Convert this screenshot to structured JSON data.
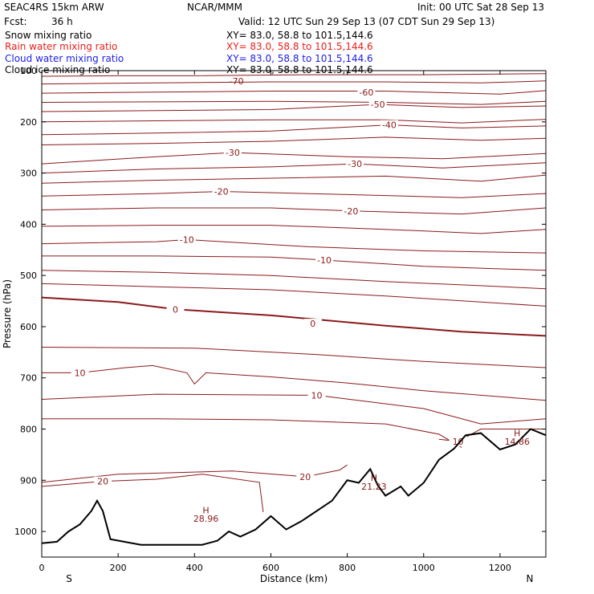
{
  "header": {
    "model": "SEAC4RS 15km ARW",
    "fcst_label": "Fcst:",
    "fcst_value": "36 h",
    "org": "NCAR/MMM",
    "init": "Init: 00 UTC Sat 28 Sep 13",
    "valid": "Valid: 12 UTC Sun 29 Sep 13 (07 CDT Sun 29 Sep 13)"
  },
  "fields": [
    {
      "name": "Snow mixing ratio",
      "xy": "XY=  83.0, 58.8 to 101.5,144.6",
      "color": "#000000"
    },
    {
      "name": "Rain water mixing ratio",
      "xy": "XY=  83.0, 58.8 to 101.5,144.6",
      "color": "#e8201c"
    },
    {
      "name": "Cloud water mixing ratio",
      "xy": "XY=  83.0, 58.8 to 101.5,144.6",
      "color": "#1c1ce8"
    },
    {
      "name": "Cloud ice mixing ratio",
      "xy": "XY=  83.0, 58.8 to 101.5,144.6",
      "color": "#000000"
    }
  ],
  "chart_data": {
    "type": "line",
    "xlabel": "Distance (km)",
    "ylabel": "Pressure (hPa)",
    "xlim": [
      0,
      1320
    ],
    "ylim_pressure": [
      1050,
      100
    ],
    "x_ticks": [
      0,
      200,
      400,
      600,
      800,
      1000,
      1200
    ],
    "y_ticks": [
      100,
      200,
      300,
      400,
      500,
      600,
      700,
      800,
      900,
      1000
    ],
    "left_end_label": "S",
    "right_end_label": "N",
    "contour_color": "#8b1a1a",
    "terrain_color": "#000000",
    "isotherms": [
      {
        "value": -70,
        "label": "-70",
        "label_at": [
          510,
          120
        ],
        "points": [
          [
            0,
            111
          ],
          [
            200,
            110
          ],
          [
            400,
            110
          ],
          [
            700,
            108
          ],
          [
            1000,
            108
          ],
          [
            1320,
            106
          ]
        ]
      },
      {
        "value": -65,
        "label": "",
        "points": [
          [
            0,
            126
          ],
          [
            300,
            124
          ],
          [
            600,
            122
          ],
          [
            900,
            122
          ],
          [
            1150,
            124
          ],
          [
            1320,
            120
          ]
        ]
      },
      {
        "value": -60,
        "label": "-60",
        "label_at": [
          850,
          142
        ],
        "points": [
          [
            0,
            144
          ],
          [
            300,
            142
          ],
          [
            600,
            140
          ],
          [
            900,
            140
          ],
          [
            1200,
            146
          ],
          [
            1320,
            139
          ]
        ]
      },
      {
        "value": -55,
        "label": "",
        "points": [
          [
            0,
            162
          ],
          [
            300,
            161
          ],
          [
            600,
            160
          ],
          [
            900,
            162
          ],
          [
            1150,
            166
          ],
          [
            1320,
            160
          ]
        ]
      },
      {
        "value": -50,
        "label": "-50",
        "label_at": [
          880,
          166
        ],
        "points": [
          [
            0,
            180
          ],
          [
            300,
            178
          ],
          [
            600,
            176
          ],
          [
            880,
            166
          ],
          [
            1100,
            172
          ],
          [
            1320,
            169
          ]
        ]
      },
      {
        "value": -45,
        "label": "",
        "points": [
          [
            0,
            200
          ],
          [
            300,
            198
          ],
          [
            600,
            196
          ],
          [
            900,
            196
          ],
          [
            1100,
            202
          ],
          [
            1320,
            195
          ]
        ]
      },
      {
        "value": -40,
        "label": "-40",
        "label_at": [
          910,
          206
        ],
        "points": [
          [
            0,
            225
          ],
          [
            300,
            222
          ],
          [
            600,
            218
          ],
          [
            910,
            206
          ],
          [
            1100,
            212
          ],
          [
            1320,
            208
          ]
        ]
      },
      {
        "value": -35,
        "label": "",
        "points": [
          [
            0,
            245
          ],
          [
            300,
            242
          ],
          [
            600,
            238
          ],
          [
            900,
            230
          ],
          [
            1150,
            236
          ],
          [
            1320,
            232
          ]
        ]
      },
      {
        "value": -30,
        "label": "-30",
        "label_at": [
          500,
          260
        ],
        "points": [
          [
            0,
            282
          ],
          [
            300,
            268
          ],
          [
            500,
            260
          ],
          [
            800,
            268
          ],
          [
            1050,
            272
          ],
          [
            1320,
            262
          ]
        ]
      },
      {
        "value": -30,
        "label": "-30",
        "label_at": [
          820,
          282
        ],
        "points": [
          [
            0,
            300
          ],
          [
            300,
            292
          ],
          [
            600,
            288
          ],
          [
            820,
            282
          ],
          [
            1050,
            290
          ],
          [
            1320,
            280
          ]
        ]
      },
      {
        "value": -25,
        "label": "",
        "points": [
          [
            0,
            320
          ],
          [
            300,
            314
          ],
          [
            600,
            310
          ],
          [
            900,
            306
          ],
          [
            1150,
            316
          ],
          [
            1320,
            304
          ]
        ]
      },
      {
        "value": -20,
        "label": "-20",
        "label_at": [
          470,
          336
        ],
        "points": [
          [
            0,
            345
          ],
          [
            300,
            340
          ],
          [
            470,
            336
          ],
          [
            800,
            342
          ],
          [
            1100,
            348
          ],
          [
            1320,
            340
          ]
        ]
      },
      {
        "value": -20,
        "label": "-20",
        "label_at": [
          810,
          374
        ],
        "points": [
          [
            0,
            372
          ],
          [
            300,
            368
          ],
          [
            600,
            368
          ],
          [
            810,
            374
          ],
          [
            1100,
            380
          ],
          [
            1320,
            368
          ]
        ]
      },
      {
        "value": -15,
        "label": "",
        "points": [
          [
            0,
            404
          ],
          [
            300,
            402
          ],
          [
            600,
            402
          ],
          [
            900,
            410
          ],
          [
            1150,
            418
          ],
          [
            1320,
            410
          ]
        ]
      },
      {
        "value": -10,
        "label": "-10",
        "label_at": [
          380,
          430
        ],
        "points": [
          [
            0,
            438
          ],
          [
            300,
            434
          ],
          [
            380,
            430
          ],
          [
            700,
            444
          ],
          [
            1000,
            452
          ],
          [
            1320,
            456
          ]
        ]
      },
      {
        "value": -10,
        "label": "-10",
        "label_at": [
          740,
          470
        ],
        "points": [
          [
            0,
            462
          ],
          [
            300,
            462
          ],
          [
            600,
            464
          ],
          [
            740,
            470
          ],
          [
            1000,
            482
          ],
          [
            1320,
            490
          ]
        ]
      },
      {
        "value": -5,
        "label": "",
        "points": [
          [
            0,
            490
          ],
          [
            300,
            494
          ],
          [
            600,
            500
          ],
          [
            900,
            512
          ],
          [
            1150,
            520
          ],
          [
            1320,
            526
          ]
        ]
      },
      {
        "value": -2,
        "label": "",
        "points": [
          [
            0,
            516
          ],
          [
            300,
            522
          ],
          [
            600,
            528
          ],
          [
            900,
            540
          ],
          [
            1150,
            552
          ],
          [
            1320,
            560
          ]
        ]
      },
      {
        "value": 0,
        "label": "0",
        "label_at": [
          350,
          566
        ],
        "bold": true,
        "points": [
          [
            0,
            543
          ],
          [
            200,
            552
          ],
          [
            350,
            566
          ],
          [
            600,
            578
          ],
          [
            900,
            598
          ],
          [
            1100,
            610
          ],
          [
            1320,
            618
          ]
        ]
      },
      {
        "value": 0,
        "label": "0",
        "label_at": [
          710,
          594
        ],
        "points": [
          [
            0,
            640
          ],
          [
            400,
            642
          ],
          [
            710,
            654
          ],
          [
            1000,
            668
          ],
          [
            1320,
            680
          ]
        ]
      },
      {
        "value": 10,
        "label": "10",
        "label_at": [
          100,
          690
        ],
        "points": [
          [
            0,
            690
          ],
          [
            100,
            690
          ],
          [
            220,
            680
          ],
          [
            290,
            676
          ],
          [
            380,
            690
          ],
          [
            400,
            712
          ],
          [
            430,
            690
          ],
          [
            600,
            698
          ],
          [
            800,
            710
          ],
          [
            1000,
            725
          ],
          [
            1320,
            744
          ]
        ]
      },
      {
        "value": 10,
        "label": "10",
        "label_at": [
          720,
          734
        ],
        "points": [
          [
            0,
            742
          ],
          [
            300,
            732
          ],
          [
            720,
            734
          ],
          [
            1000,
            760
          ],
          [
            1150,
            790
          ],
          [
            1320,
            780
          ]
        ]
      },
      {
        "value": 15,
        "label": "",
        "points": [
          [
            0,
            780
          ],
          [
            300,
            780
          ],
          [
            600,
            782
          ],
          [
            900,
            790
          ],
          [
            1040,
            810
          ],
          [
            1100,
            836
          ]
        ]
      },
      {
        "value": 10,
        "label": "10",
        "label_at": [
          1090,
          824
        ],
        "points": [
          [
            1040,
            820
          ],
          [
            1090,
            824
          ],
          [
            1150,
            800
          ],
          [
            1320,
            800
          ]
        ]
      },
      {
        "value": 20,
        "label": "20",
        "label_at": [
          690,
          893
        ],
        "points": [
          [
            0,
            904
          ],
          [
            200,
            888
          ],
          [
            500,
            882
          ],
          [
            690,
            893
          ],
          [
            780,
            880
          ],
          [
            800,
            870
          ]
        ]
      },
      {
        "value": 20,
        "label": "20",
        "label_at": [
          160,
          902
        ],
        "points": [
          [
            0,
            912
          ],
          [
            160,
            902
          ],
          [
            300,
            898
          ],
          [
            420,
            888
          ],
          [
            570,
            904
          ],
          [
            580,
            962
          ]
        ]
      }
    ],
    "terrain": {
      "points": [
        [
          0,
          1023
        ],
        [
          40,
          1020
        ],
        [
          70,
          1000
        ],
        [
          100,
          986
        ],
        [
          130,
          960
        ],
        [
          145,
          940
        ],
        [
          160,
          960
        ],
        [
          180,
          1015
        ],
        [
          260,
          1026
        ],
        [
          420,
          1026
        ],
        [
          460,
          1018
        ],
        [
          490,
          1000
        ],
        [
          520,
          1010
        ],
        [
          560,
          996
        ],
        [
          600,
          970
        ],
        [
          640,
          996
        ],
        [
          680,
          980
        ],
        [
          760,
          940
        ],
        [
          800,
          900
        ],
        [
          830,
          905
        ],
        [
          860,
          878
        ],
        [
          880,
          910
        ],
        [
          900,
          930
        ],
        [
          940,
          912
        ],
        [
          960,
          930
        ],
        [
          1000,
          905
        ],
        [
          1040,
          860
        ],
        [
          1080,
          838
        ],
        [
          1110,
          812
        ],
        [
          1150,
          808
        ],
        [
          1200,
          840
        ],
        [
          1240,
          830
        ],
        [
          1280,
          800
        ],
        [
          1320,
          812
        ]
      ]
    },
    "annotations": [
      {
        "text": "H",
        "x": 430,
        "p": 958
      },
      {
        "text": "28.96",
        "x": 430,
        "p": 975
      },
      {
        "text": "H",
        "x": 870,
        "p": 895
      },
      {
        "text": "21.23",
        "x": 870,
        "p": 912
      },
      {
        "text": "H",
        "x": 1245,
        "p": 808
      },
      {
        "text": "14.86",
        "x": 1245,
        "p": 824
      }
    ]
  }
}
